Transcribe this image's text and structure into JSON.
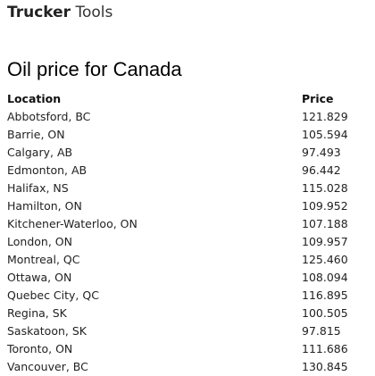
{
  "header": {
    "brand_bold": "Trucker",
    "brand_light": " Tools"
  },
  "main": {
    "title": "Oil price for Canada",
    "table": {
      "headers": {
        "location": "Location",
        "price": "Price"
      },
      "rows": [
        {
          "location": "Abbotsford, BC",
          "price": "121.829"
        },
        {
          "location": "Barrie, ON",
          "price": "105.594"
        },
        {
          "location": "Calgary, AB",
          "price": "97.493"
        },
        {
          "location": "Edmonton, AB",
          "price": "96.442"
        },
        {
          "location": "Halifax, NS",
          "price": "115.028"
        },
        {
          "location": "Hamilton, ON",
          "price": "109.952"
        },
        {
          "location": "Kitchener-Waterloo, ON",
          "price": "107.188"
        },
        {
          "location": "London, ON",
          "price": "109.957"
        },
        {
          "location": "Montreal, QC",
          "price": "125.460"
        },
        {
          "location": "Ottawa, ON",
          "price": "108.094"
        },
        {
          "location": "Quebec City, QC",
          "price": "116.895"
        },
        {
          "location": "Regina, SK",
          "price": "100.505"
        },
        {
          "location": "Saskatoon, SK",
          "price": "97.815"
        },
        {
          "location": "Toronto, ON",
          "price": "111.686"
        },
        {
          "location": "Vancouver, BC",
          "price": "130.845"
        }
      ]
    }
  }
}
